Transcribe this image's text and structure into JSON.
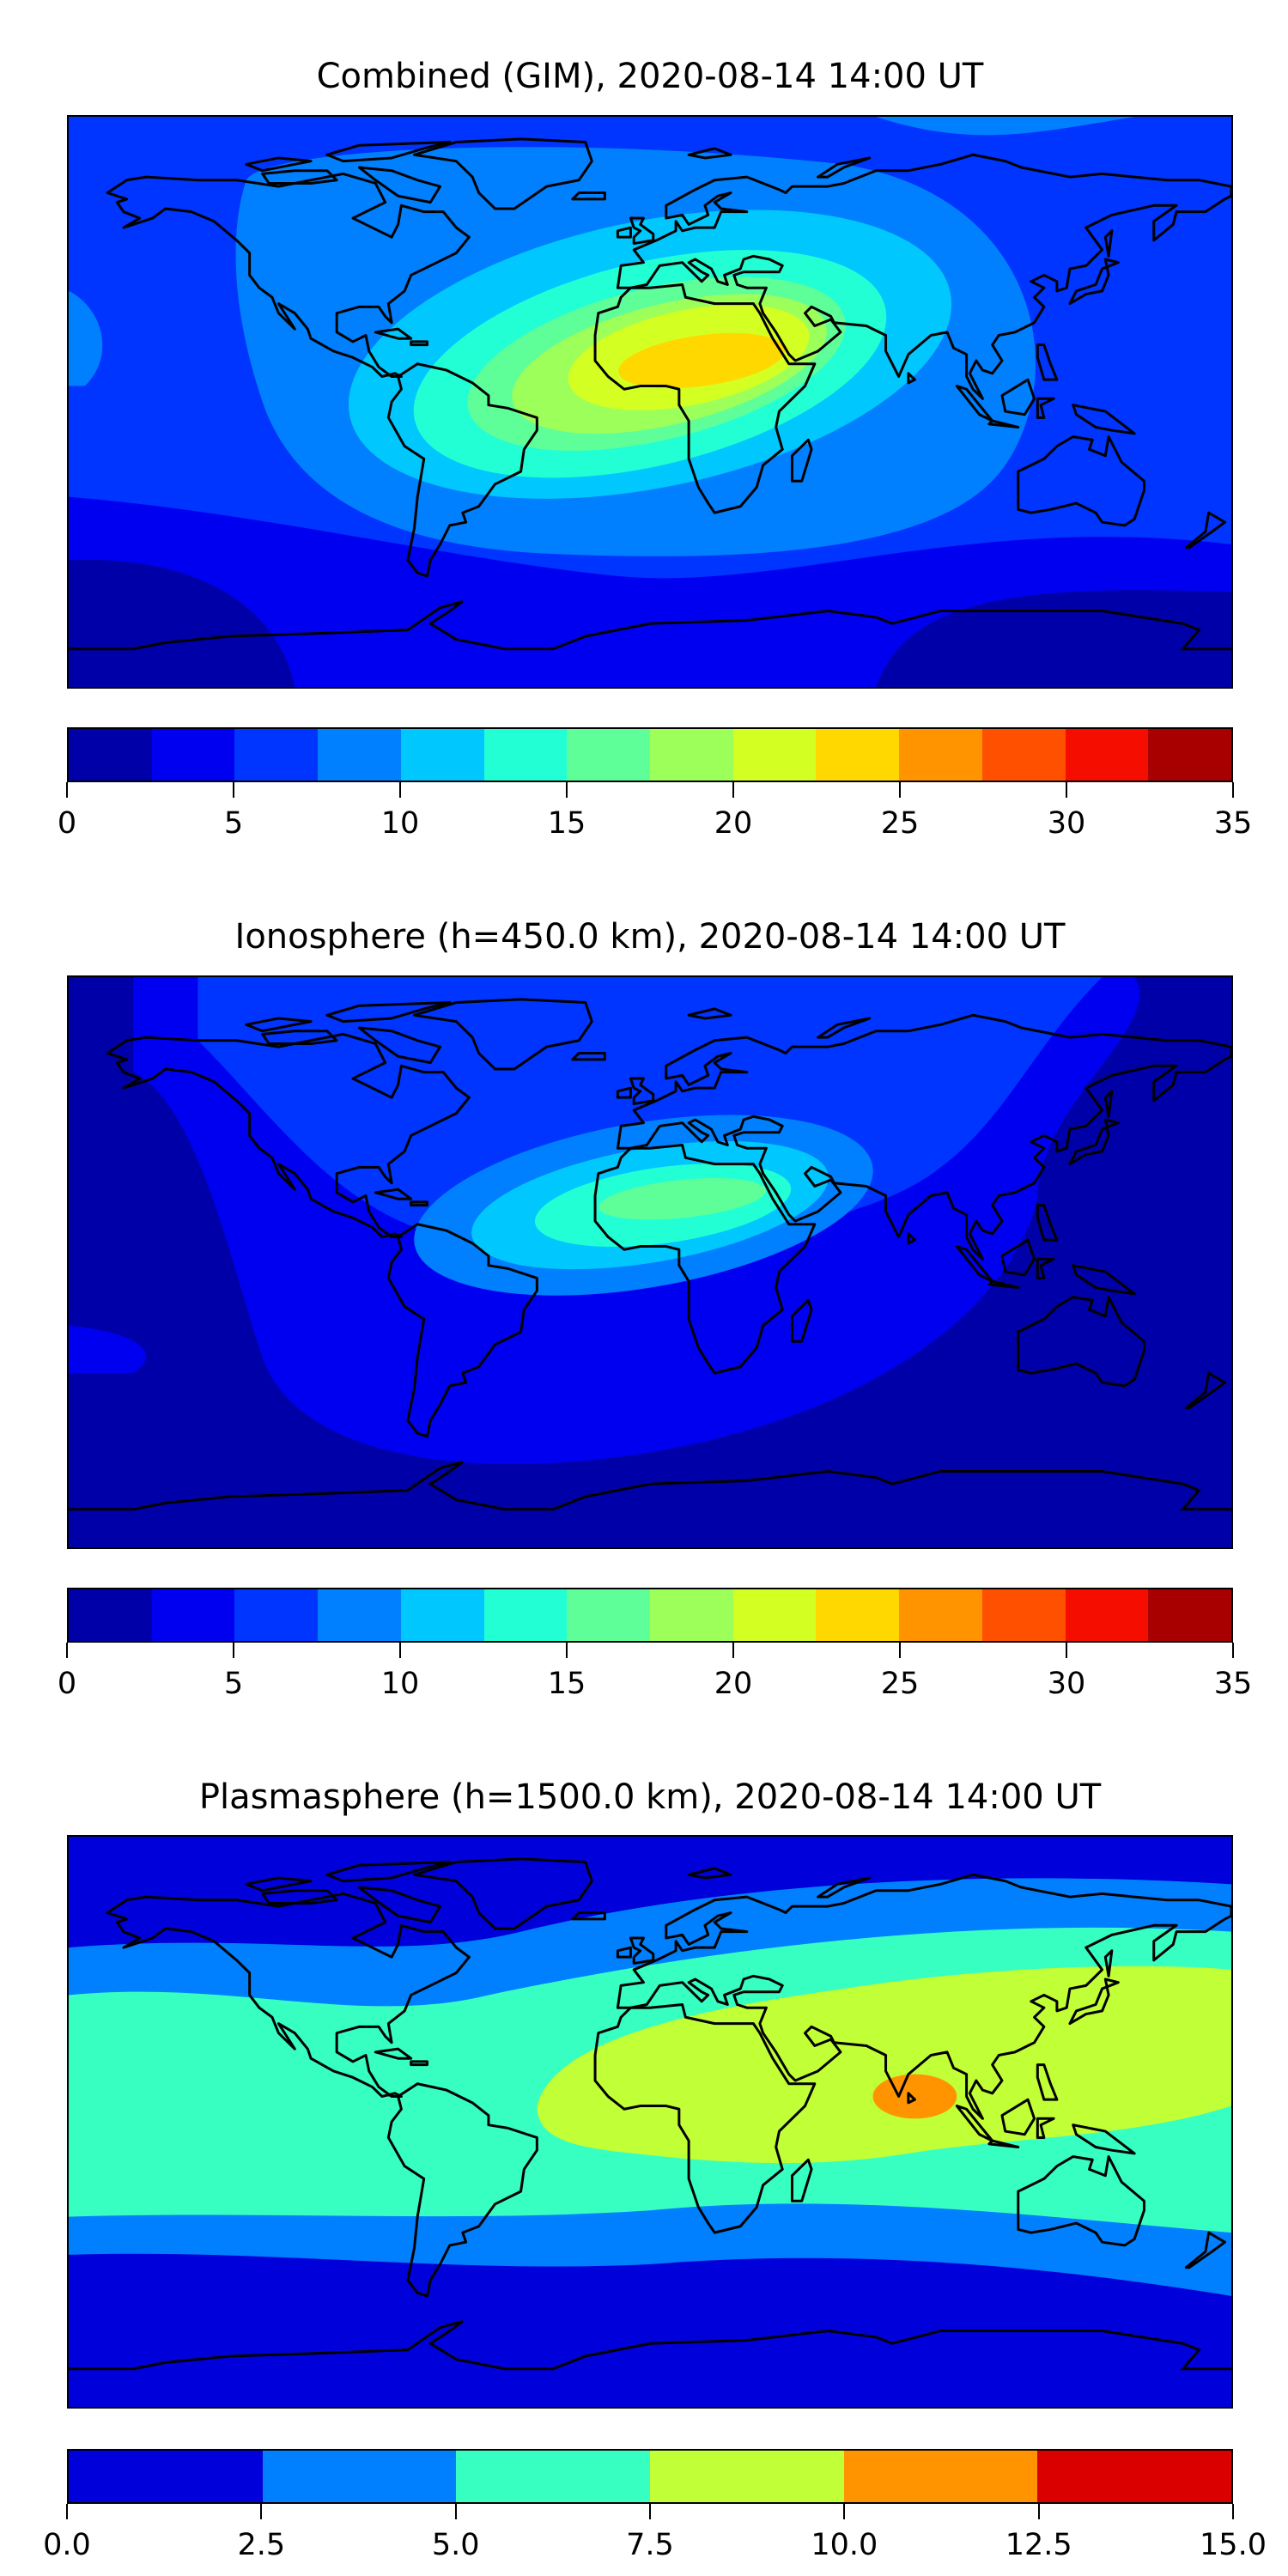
{
  "chart_data": [
    {
      "type": "heatmap",
      "title": "Combined (GIM), 2020-08-14 14:00 UT",
      "projection": "global lon/lat map with coastlines",
      "colorbar": {
        "levels": [
          0,
          2.5,
          5,
          7.5,
          10,
          12.5,
          15,
          17.5,
          20,
          22.5,
          25,
          27.5,
          30,
          32.5,
          35
        ],
        "colors": [
          "#0000a8",
          "#0000f1",
          "#0034ff",
          "#0080ff",
          "#00c8ff",
          "#22ffd4",
          "#5eff98",
          "#9cff5a",
          "#d4ff22",
          "#ffd800",
          "#ff9400",
          "#ff5000",
          "#f50d00",
          "#a80000"
        ],
        "tick_labels": [
          "0",
          "5",
          "10",
          "15",
          "20",
          "25",
          "30",
          "35"
        ],
        "tick_values": [
          0,
          5,
          10,
          15,
          20,
          25,
          30,
          35
        ],
        "range": [
          0,
          35
        ]
      },
      "peak_region": "West/Central Africa, values 22.5-25"
    },
    {
      "type": "heatmap",
      "title": "Ionosphere  (h=450.0 km), 2020-08-14 14:00 UT",
      "projection": "global lon/lat map with coastlines",
      "colorbar": {
        "levels": [
          0,
          2.5,
          5,
          7.5,
          10,
          12.5,
          15,
          17.5,
          20,
          22.5,
          25,
          27.5,
          30,
          32.5,
          35
        ],
        "colors": [
          "#0000a8",
          "#0000f1",
          "#0034ff",
          "#0080ff",
          "#00c8ff",
          "#22ffd4",
          "#5eff98",
          "#9cff5a",
          "#d4ff22",
          "#ffd800",
          "#ff9400",
          "#ff5000",
          "#f50d00",
          "#a80000"
        ],
        "tick_labels": [
          "0",
          "5",
          "10",
          "15",
          "20",
          "25",
          "30",
          "35"
        ],
        "tick_values": [
          0,
          5,
          10,
          15,
          20,
          25,
          30,
          35
        ],
        "range": [
          0,
          35
        ]
      },
      "peak_region": "North Africa, values 15-17.5"
    },
    {
      "type": "heatmap",
      "title": "Plasmasphere (h=1500.0 km), 2020-08-14 14:00 UT",
      "projection": "global lon/lat map with coastlines",
      "colorbar": {
        "levels": [
          0,
          2.5,
          5,
          7.5,
          10,
          12.5,
          15
        ],
        "colors": [
          "#0000db",
          "#0080ff",
          "#36ffc1",
          "#c1ff36",
          "#ff9400",
          "#db0000"
        ],
        "tick_labels": [
          "0.0",
          "2.5",
          "5.0",
          "7.5",
          "10.0",
          "12.5",
          "15.0"
        ],
        "tick_values": [
          0,
          2.5,
          5,
          7.5,
          10,
          12.5,
          15
        ],
        "range": [
          0,
          15
        ]
      },
      "peak_region": "Indian Ocean, values 10-12.5"
    }
  ]
}
